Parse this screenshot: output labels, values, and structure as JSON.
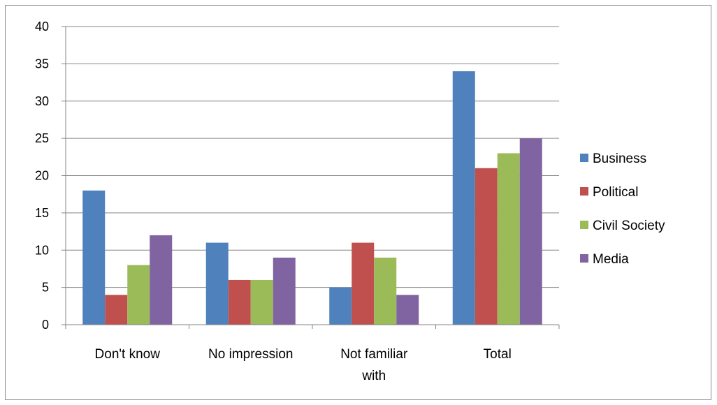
{
  "chart_data": {
    "type": "bar",
    "title": "",
    "xlabel": "",
    "ylabel": "",
    "ylim": [
      0,
      40
    ],
    "yticks": [
      0,
      5,
      10,
      15,
      20,
      25,
      30,
      35,
      40
    ],
    "grid": true,
    "legend_position": "right",
    "categories": [
      "Don't know",
      "No impression",
      "Not familiar with",
      "Total"
    ],
    "series": [
      {
        "name": "Business",
        "color": "#4f81bd",
        "values": [
          18,
          11,
          5,
          34
        ]
      },
      {
        "name": "Political",
        "color": "#c0504d",
        "values": [
          4,
          6,
          11,
          21
        ]
      },
      {
        "name": "Civil Society",
        "color": "#9bbb59",
        "values": [
          8,
          6,
          9,
          23
        ]
      },
      {
        "name": "Media",
        "color": "#8064a2",
        "values": [
          12,
          9,
          4,
          25
        ]
      }
    ]
  }
}
